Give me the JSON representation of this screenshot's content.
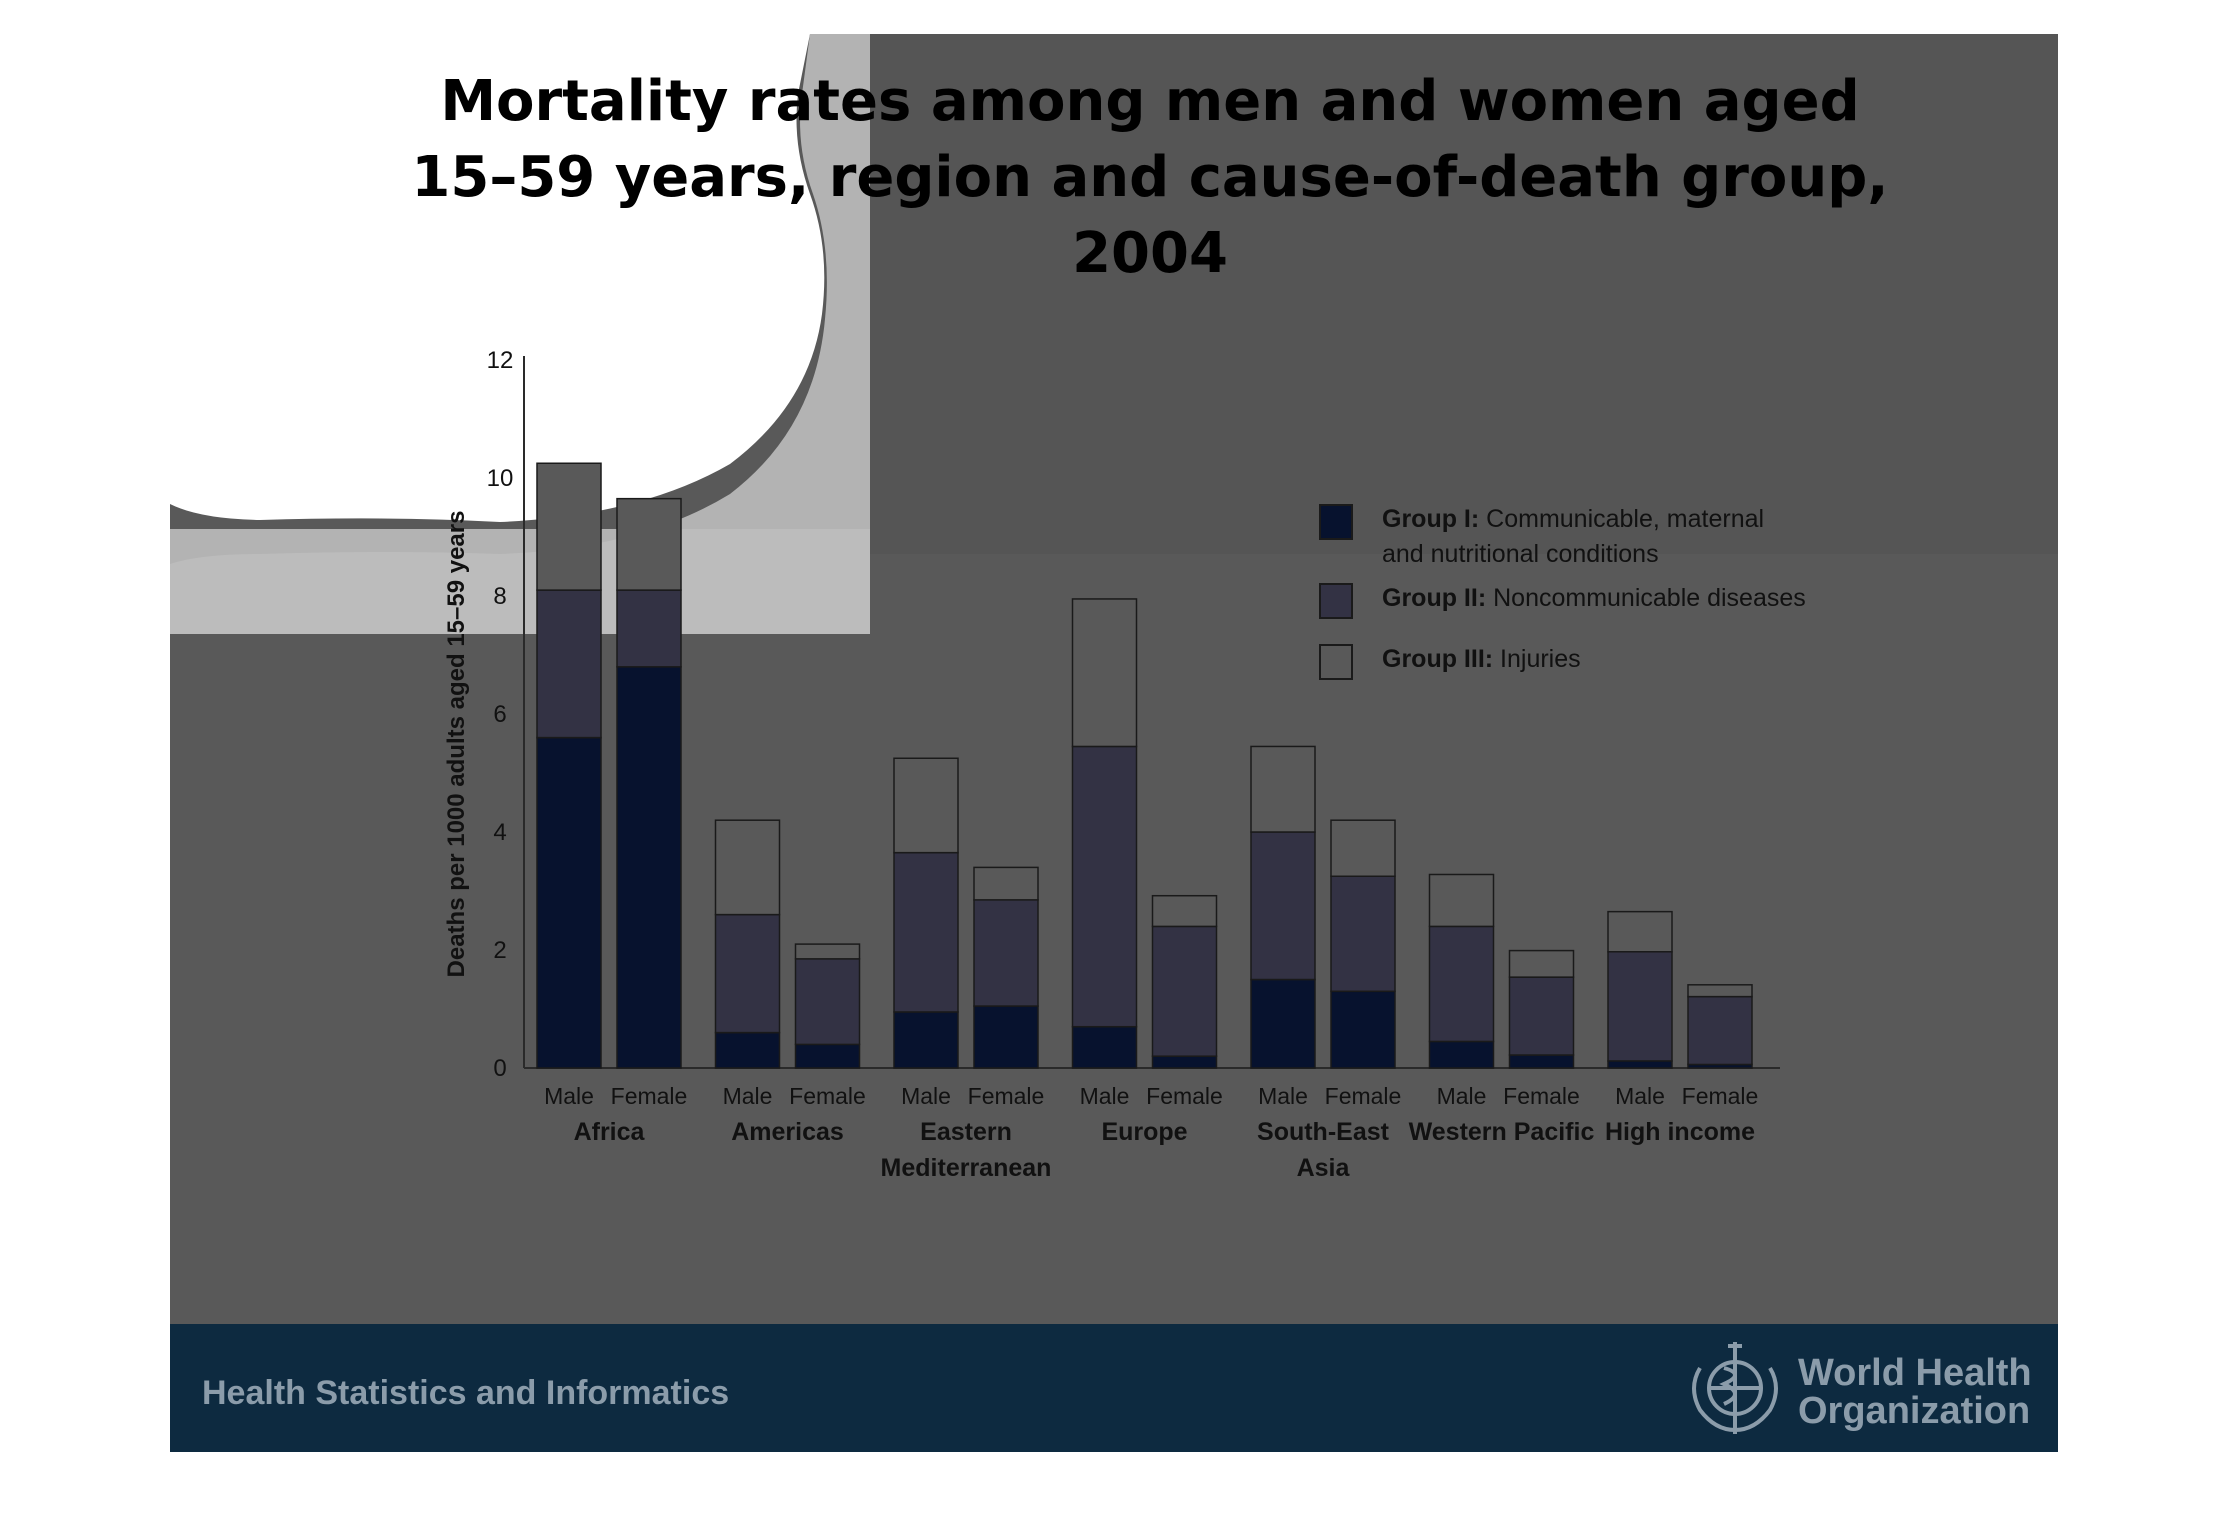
{
  "slide": {
    "title_lines": [
      "Mortality rates among men and women aged",
      "15–59 years, region and cause-of-death group,",
      "2004"
    ],
    "footer_text": "Health Statistics and Informatics",
    "who_lines": [
      "World Health",
      "Organization"
    ]
  },
  "colors": {
    "slide_background": "#595959",
    "footer_background": "#0d2a40",
    "group_1": "#07122e",
    "group_2": "#333244",
    "group_3": "#595959",
    "bar_stroke": "#1a1a1a"
  },
  "chart_data": {
    "type": "bar",
    "stacked": true,
    "ylabel": "Deaths per 1000 adults aged 15–59 years",
    "ylim": [
      0,
      12
    ],
    "yticks": [
      "0",
      "2",
      "4",
      "6",
      "8",
      "10",
      "12"
    ],
    "regions": [
      {
        "name": "Africa",
        "label_lines": [
          "Africa"
        ]
      },
      {
        "name": "Americas",
        "label_lines": [
          "Americas"
        ]
      },
      {
        "name": "Eastern Mediterranean",
        "label_lines": [
          "Eastern",
          "Mediterranean"
        ]
      },
      {
        "name": "Europe",
        "label_lines": [
          "Europe"
        ]
      },
      {
        "name": "South-East Asia",
        "label_lines": [
          "South-East",
          "Asia"
        ]
      },
      {
        "name": "Western Pacific",
        "label_lines": [
          "Western Pacific"
        ]
      },
      {
        "name": "High income",
        "label_lines": [
          "High income"
        ]
      }
    ],
    "sexes": [
      "Male",
      "Female"
    ],
    "series": [
      {
        "name": "Group I",
        "legend_bold": "Group I:",
        "legend_lines": [
          "Communicable, maternal",
          "and nutritional conditions"
        ],
        "values": [
          [
            5.6,
            6.8
          ],
          [
            0.6,
            0.4
          ],
          [
            0.95,
            1.05
          ],
          [
            0.7,
            0.2
          ],
          [
            1.5,
            1.3
          ],
          [
            0.45,
            0.22
          ],
          [
            0.12,
            0.06
          ]
        ]
      },
      {
        "name": "Group II",
        "legend_bold": "Group II:",
        "legend_lines": [
          "Noncommunicable diseases"
        ],
        "values": [
          [
            2.5,
            1.3
          ],
          [
            2.0,
            1.45
          ],
          [
            2.7,
            1.8
          ],
          [
            4.75,
            2.2
          ],
          [
            2.5,
            1.95
          ],
          [
            1.95,
            1.32
          ],
          [
            1.85,
            1.15
          ]
        ]
      },
      {
        "name": "Group III",
        "legend_bold": "Group III:",
        "legend_lines": [
          "Injuries"
        ],
        "values": [
          [
            2.15,
            1.55
          ],
          [
            1.6,
            0.25
          ],
          [
            1.6,
            0.55
          ],
          [
            2.5,
            0.52
          ],
          [
            1.45,
            0.95
          ],
          [
            0.88,
            0.45
          ],
          [
            0.68,
            0.2
          ]
        ]
      }
    ],
    "legend_position": "right"
  }
}
